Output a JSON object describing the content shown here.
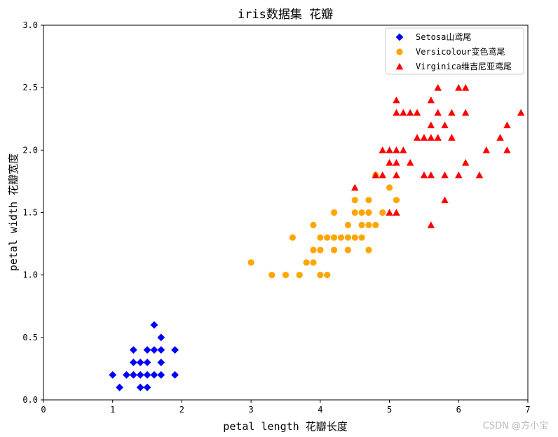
{
  "chart_data": {
    "type": "scatter",
    "title": "iris数据集 花瓣",
    "xlabel": "petal length 花瓣长度",
    "ylabel": "petal width 花瓣宽度",
    "xlim": [
      0,
      7
    ],
    "ylim": [
      0,
      3.0
    ],
    "xticks": [
      "0",
      "1",
      "2",
      "3",
      "4",
      "5",
      "6",
      "7"
    ],
    "yticks": [
      "0.0",
      "0.5",
      "1.0",
      "1.5",
      "2.0",
      "2.5",
      "3.0"
    ],
    "grid": false,
    "legend_position": "top-right",
    "series": [
      {
        "name": "Setosa山鸢尾",
        "marker": "diamond",
        "color": "#0000ff",
        "points": [
          [
            1.0,
            0.2
          ],
          [
            1.1,
            0.1
          ],
          [
            1.2,
            0.2
          ],
          [
            1.3,
            0.2
          ],
          [
            1.3,
            0.3
          ],
          [
            1.3,
            0.4
          ],
          [
            1.4,
            0.1
          ],
          [
            1.4,
            0.2
          ],
          [
            1.4,
            0.3
          ],
          [
            1.5,
            0.1
          ],
          [
            1.5,
            0.2
          ],
          [
            1.5,
            0.3
          ],
          [
            1.5,
            0.4
          ],
          [
            1.6,
            0.2
          ],
          [
            1.6,
            0.4
          ],
          [
            1.6,
            0.6
          ],
          [
            1.7,
            0.2
          ],
          [
            1.7,
            0.3
          ],
          [
            1.7,
            0.4
          ],
          [
            1.7,
            0.5
          ],
          [
            1.9,
            0.2
          ],
          [
            1.9,
            0.4
          ]
        ]
      },
      {
        "name": "Versicolour变色鸢尾",
        "marker": "circle",
        "color": "#ffa500",
        "points": [
          [
            3.0,
            1.1
          ],
          [
            3.3,
            1.0
          ],
          [
            3.5,
            1.0
          ],
          [
            3.6,
            1.3
          ],
          [
            3.7,
            1.0
          ],
          [
            3.8,
            1.1
          ],
          [
            3.9,
            1.1
          ],
          [
            3.9,
            1.2
          ],
          [
            3.9,
            1.4
          ],
          [
            4.0,
            1.0
          ],
          [
            4.0,
            1.2
          ],
          [
            4.0,
            1.3
          ],
          [
            4.1,
            1.0
          ],
          [
            4.1,
            1.3
          ],
          [
            4.2,
            1.2
          ],
          [
            4.2,
            1.3
          ],
          [
            4.2,
            1.5
          ],
          [
            4.3,
            1.3
          ],
          [
            4.4,
            1.2
          ],
          [
            4.4,
            1.3
          ],
          [
            4.4,
            1.4
          ],
          [
            4.5,
            1.3
          ],
          [
            4.5,
            1.5
          ],
          [
            4.5,
            1.6
          ],
          [
            4.6,
            1.3
          ],
          [
            4.6,
            1.4
          ],
          [
            4.6,
            1.5
          ],
          [
            4.7,
            1.2
          ],
          [
            4.7,
            1.4
          ],
          [
            4.7,
            1.5
          ],
          [
            4.7,
            1.6
          ],
          [
            4.8,
            1.4
          ],
          [
            4.8,
            1.8
          ],
          [
            4.9,
            1.5
          ],
          [
            5.0,
            1.7
          ],
          [
            5.1,
            1.6
          ]
        ]
      },
      {
        "name": "Virginica维吉尼亚鸢尾",
        "marker": "triangle",
        "color": "#ff0000",
        "points": [
          [
            4.5,
            1.7
          ],
          [
            4.8,
            1.8
          ],
          [
            4.9,
            1.8
          ],
          [
            4.9,
            2.0
          ],
          [
            5.0,
            1.5
          ],
          [
            5.0,
            1.9
          ],
          [
            5.0,
            2.0
          ],
          [
            5.1,
            1.5
          ],
          [
            5.1,
            1.8
          ],
          [
            5.1,
            1.9
          ],
          [
            5.1,
            2.0
          ],
          [
            5.1,
            2.3
          ],
          [
            5.1,
            2.4
          ],
          [
            5.2,
            2.0
          ],
          [
            5.2,
            2.3
          ],
          [
            5.3,
            1.9
          ],
          [
            5.3,
            2.3
          ],
          [
            5.4,
            2.1
          ],
          [
            5.4,
            2.3
          ],
          [
            5.5,
            1.8
          ],
          [
            5.5,
            2.1
          ],
          [
            5.6,
            1.4
          ],
          [
            5.6,
            1.8
          ],
          [
            5.6,
            2.1
          ],
          [
            5.6,
            2.2
          ],
          [
            5.6,
            2.4
          ],
          [
            5.7,
            2.1
          ],
          [
            5.7,
            2.3
          ],
          [
            5.7,
            2.5
          ],
          [
            5.8,
            1.6
          ],
          [
            5.8,
            1.8
          ],
          [
            5.8,
            2.2
          ],
          [
            5.9,
            2.1
          ],
          [
            5.9,
            2.3
          ],
          [
            6.0,
            1.8
          ],
          [
            6.0,
            2.5
          ],
          [
            6.1,
            1.9
          ],
          [
            6.1,
            2.3
          ],
          [
            6.1,
            2.5
          ],
          [
            6.3,
            1.8
          ],
          [
            6.4,
            2.0
          ],
          [
            6.6,
            2.1
          ],
          [
            6.7,
            2.0
          ],
          [
            6.7,
            2.2
          ],
          [
            6.9,
            2.3
          ]
        ]
      }
    ]
  },
  "watermark": "CSDN @方小宝"
}
